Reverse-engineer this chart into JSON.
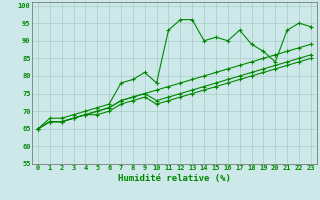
{
  "xlabel": "Humidité relative (%)",
  "xlim": [
    -0.5,
    23.5
  ],
  "ylim": [
    55,
    101
  ],
  "yticks": [
    55,
    60,
    65,
    70,
    75,
    80,
    85,
    90,
    95,
    100
  ],
  "xticks": [
    0,
    1,
    2,
    3,
    4,
    5,
    6,
    7,
    8,
    9,
    10,
    11,
    12,
    13,
    14,
    15,
    16,
    17,
    18,
    19,
    20,
    21,
    22,
    23
  ],
  "bg_color": "#cce8e8",
  "grid_color": "#aacccc",
  "line_color": "#008800",
  "series": [
    [
      65,
      68,
      68,
      69,
      70,
      71,
      72,
      78,
      79,
      81,
      78,
      93,
      96,
      96,
      90,
      91,
      90,
      93,
      89,
      87,
      84,
      93,
      95,
      94
    ],
    [
      65,
      67,
      67,
      68,
      69,
      70,
      71,
      73,
      74,
      75,
      76,
      77,
      78,
      79,
      80,
      81,
      82,
      83,
      84,
      85,
      86,
      87,
      88,
      89
    ],
    [
      65,
      67,
      67,
      68,
      69,
      70,
      71,
      73,
      74,
      75,
      73,
      74,
      75,
      76,
      77,
      78,
      79,
      80,
      81,
      82,
      83,
      84,
      85,
      86
    ],
    [
      65,
      67,
      67,
      68,
      69,
      69,
      70,
      72,
      73,
      74,
      72,
      73,
      74,
      75,
      76,
      77,
      78,
      79,
      80,
      81,
      82,
      83,
      84,
      85
    ]
  ],
  "marker": "+",
  "markersize": 3.5,
  "linewidth": 0.8,
  "tick_fontsize": 5.0,
  "xlabel_fontsize": 6.5
}
